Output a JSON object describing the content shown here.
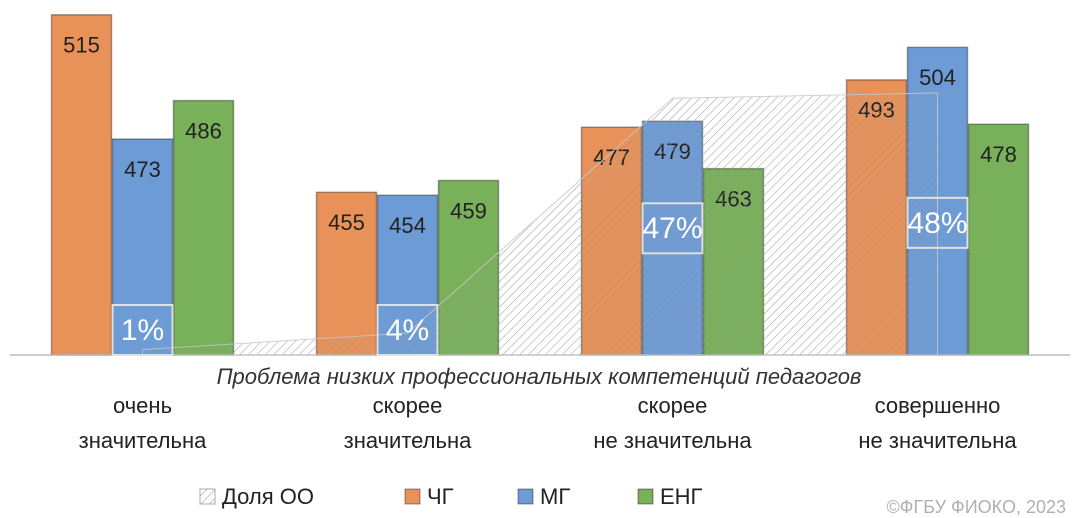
{
  "chart_data": {
    "type": "bar",
    "x_label": "Проблема низких профессиональных компетенций педагогов",
    "categories": [
      "очень\nзначительна",
      "скорее\nзначительна",
      "скорее\nне значительна",
      "совершенно\nне значительна"
    ],
    "ylim": [
      400,
      520
    ],
    "y2lim": [
      0,
      65
    ],
    "series": [
      {
        "name": "Доля ОО",
        "type": "area",
        "axis": "y2",
        "color": "#a6a6a6",
        "values": [
          1,
          4,
          47,
          48
        ],
        "value_labels": [
          "1%",
          "4%",
          "47%",
          "48%"
        ]
      },
      {
        "name": "ЧГ",
        "type": "bar",
        "color": "#e8925a",
        "values": [
          515,
          455,
          477,
          493
        ]
      },
      {
        "name": "МГ",
        "type": "bar",
        "color": "#6d9bd6",
        "values": [
          473,
          454,
          479,
          504
        ]
      },
      {
        "name": "ЕНГ",
        "type": "bar",
        "color": "#79b05a",
        "values": [
          486,
          459,
          463,
          478
        ]
      }
    ],
    "legend": "bottom",
    "watermark": "©ФГБУ ФИОКО, 2023"
  }
}
